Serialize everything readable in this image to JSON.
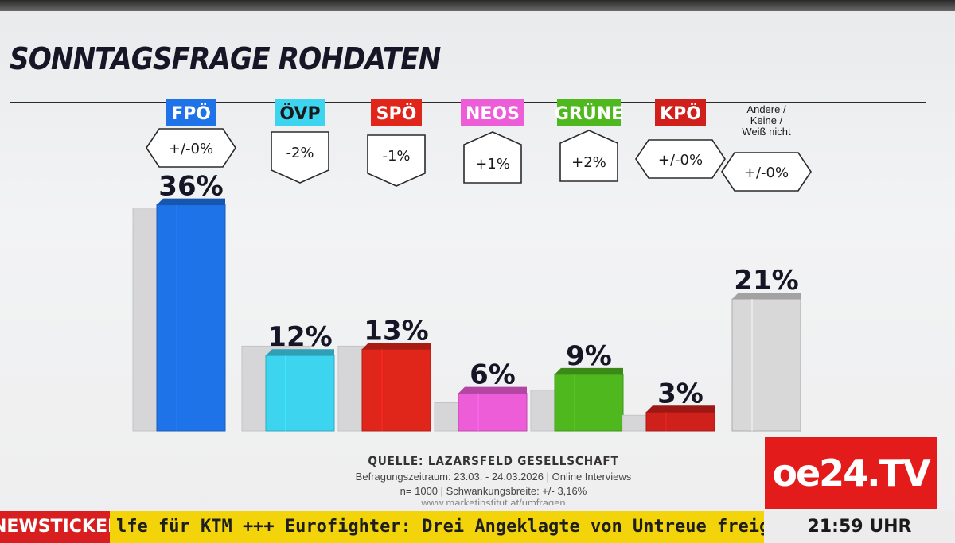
{
  "chart_data": {
    "type": "bar",
    "title": "SONNTAGSFRAGE ROHDATEN",
    "categories": [
      "FPÖ",
      "ÖVP",
      "SPÖ",
      "NEOS",
      "GRÜNE",
      "KPÖ",
      "Andere / Keine / Weiß nicht"
    ],
    "series": [
      {
        "name": "",
        "values": [
          36,
          12,
          13,
          6,
          9,
          3,
          21
        ]
      }
    ],
    "value_labels": [
      "36%",
      "12%",
      "13%",
      "6%",
      "9%",
      "3%",
      "21%"
    ],
    "changes": [
      "+/-0%",
      "-2%",
      "-1%",
      "+1%",
      "+2%",
      "+/-0%",
      "+/-0%"
    ],
    "change_direction": [
      "neutral",
      "down",
      "down",
      "up",
      "up",
      "neutral",
      "neutral"
    ],
    "previous_values_shown_grey": [
      36,
      14,
      14,
      5,
      7,
      3,
      21
    ],
    "colors": [
      "#1e73e8",
      "#3dd4f0",
      "#e0251b",
      "#ee5dd8",
      "#4fb81e",
      "#d0201c",
      "#d8d8d8"
    ],
    "ylim": [
      0,
      40
    ],
    "xlabel": "",
    "ylabel": "",
    "grid": false,
    "legend": "none"
  },
  "source": {
    "heading": "QUELLE: LAZARSFELD GESELLSCHAFT",
    "line1": "Befragungszeitraum: 23.03. - 24.03.2026 | Online Interviews",
    "line2": "n= 1000 | Schwankungsbreite: +/- 3,16%",
    "line3": "www.marketinstitut.at/umfragen"
  },
  "broadcast": {
    "logo": "oe24.TV",
    "ticker_label": "NEWSTICKER",
    "ticker_text": "lfe für KTM +++ Eurofighter: Drei Angeklagte von Untreue freigespr",
    "clock": "21:59 UHR",
    "accent": "#e41b1b",
    "ticker_bg": "#f3d40a"
  }
}
